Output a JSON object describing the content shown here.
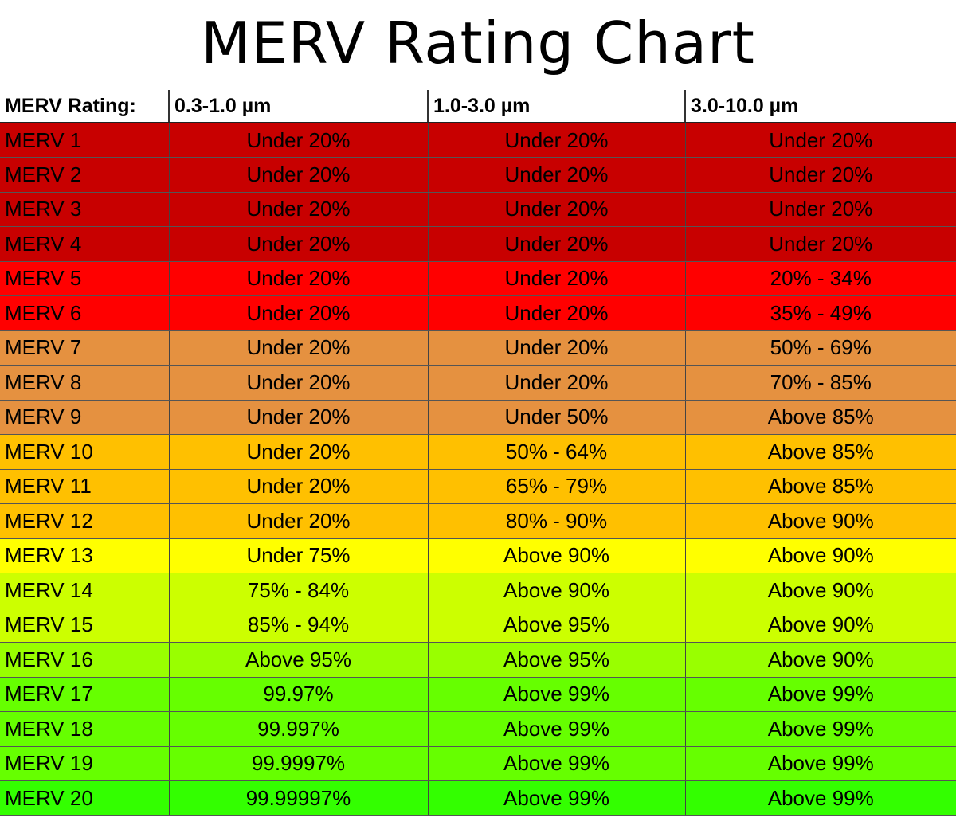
{
  "title": "MERV Rating Chart",
  "chart_data": {
    "type": "table",
    "title": "MERV Rating Chart",
    "columns": [
      "MERV Rating:",
      "0.3-1.0 µm",
      "1.0-3.0 µm",
      "3.0-10.0 µm"
    ],
    "rows": [
      {
        "rating": "MERV 1",
        "c1": "Under 20%",
        "c2": "Under 20%",
        "c3": "Under 20%",
        "color": "#c80000"
      },
      {
        "rating": "MERV 2",
        "c1": "Under 20%",
        "c2": "Under 20%",
        "c3": "Under 20%",
        "color": "#c80000"
      },
      {
        "rating": "MERV 3",
        "c1": "Under 20%",
        "c2": "Under 20%",
        "c3": "Under 20%",
        "color": "#c80000"
      },
      {
        "rating": "MERV 4",
        "c1": "Under 20%",
        "c2": "Under 20%",
        "c3": "Under 20%",
        "color": "#c80000"
      },
      {
        "rating": "MERV 5",
        "c1": "Under 20%",
        "c2": "Under 20%",
        "c3": "20% - 34%",
        "color": "#ff0000"
      },
      {
        "rating": "MERV 6",
        "c1": "Under 20%",
        "c2": "Under 20%",
        "c3": "35% - 49%",
        "color": "#ff0000"
      },
      {
        "rating": "MERV 7",
        "c1": "Under 20%",
        "c2": "Under 20%",
        "c3": "50% - 69%",
        "color": "#e59140"
      },
      {
        "rating": "MERV 8",
        "c1": "Under 20%",
        "c2": "Under 20%",
        "c3": "70% - 85%",
        "color": "#e59140"
      },
      {
        "rating": "MERV 9",
        "c1": "Under 20%",
        "c2": "Under 50%",
        "c3": "Above 85%",
        "color": "#e59140"
      },
      {
        "rating": "MERV 10",
        "c1": "Under 20%",
        "c2": "50% - 64%",
        "c3": "Above 85%",
        "color": "#ffc000"
      },
      {
        "rating": "MERV 11",
        "c1": "Under 20%",
        "c2": "65% - 79%",
        "c3": "Above 85%",
        "color": "#ffc000"
      },
      {
        "rating": "MERV 12",
        "c1": "Under 20%",
        "c2": "80% - 90%",
        "c3": "Above 90%",
        "color": "#ffc000"
      },
      {
        "rating": "MERV 13",
        "c1": "Under 75%",
        "c2": "Above 90%",
        "c3": "Above 90%",
        "color": "#ffff00"
      },
      {
        "rating": "MERV 14",
        "c1": "75% - 84%",
        "c2": "Above 90%",
        "c3": "Above 90%",
        "color": "#ccff00"
      },
      {
        "rating": "MERV 15",
        "c1": "85% - 94%",
        "c2": "Above 95%",
        "c3": "Above 90%",
        "color": "#ccff00"
      },
      {
        "rating": "MERV 16",
        "c1": "Above 95%",
        "c2": "Above 95%",
        "c3": "Above 90%",
        "color": "#99ff00"
      },
      {
        "rating": "MERV 17",
        "c1": "99.97%",
        "c2": "Above 99%",
        "c3": "Above 99%",
        "color": "#66ff00"
      },
      {
        "rating": "MERV 18",
        "c1": "99.997%",
        "c2": "Above 99%",
        "c3": "Above 99%",
        "color": "#66ff00"
      },
      {
        "rating": "MERV 19",
        "c1": "99.9997%",
        "c2": "Above 99%",
        "c3": "Above 99%",
        "color": "#66ff00"
      },
      {
        "rating": "MERV 20",
        "c1": "99.99997%",
        "c2": "Above 99%",
        "c3": "Above 99%",
        "color": "#33ff00"
      }
    ]
  }
}
